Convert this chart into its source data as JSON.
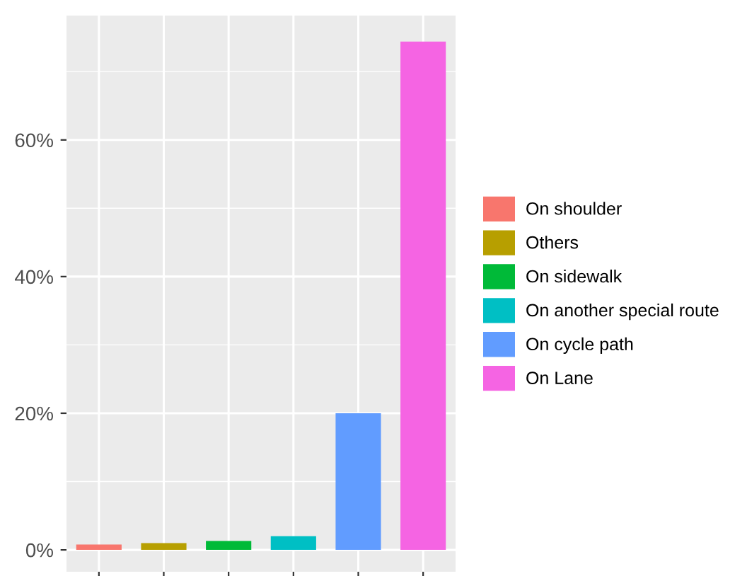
{
  "chart_data": {
    "type": "bar",
    "categories": [
      null,
      null,
      null,
      null,
      null,
      null
    ],
    "series": [
      {
        "name": "On shoulder",
        "color": "#f8766d",
        "values": [
          0.8,
          null,
          null,
          null,
          null,
          null
        ]
      },
      {
        "name": "Others",
        "color": "#b79f00",
        "values": [
          null,
          1.0,
          null,
          null,
          null,
          null
        ]
      },
      {
        "name": "On sidewalk",
        "color": "#00ba38",
        "values": [
          null,
          null,
          1.3,
          null,
          null,
          null
        ]
      },
      {
        "name": "On another special route",
        "color": "#00bfc4",
        "values": [
          null,
          null,
          null,
          2.0,
          null,
          null
        ]
      },
      {
        "name": "On cycle path",
        "color": "#619cff",
        "values": [
          null,
          null,
          null,
          null,
          20,
          null
        ]
      },
      {
        "name": "On Lane",
        "color": "#f564e3",
        "values": [
          null,
          null,
          null,
          null,
          null,
          74.4
        ]
      }
    ],
    "ylim": [
      -3.2,
      78.2
    ],
    "yticks": [
      {
        "value": 0,
        "label": "0%"
      },
      {
        "value": 20,
        "label": "20%"
      },
      {
        "value": 40,
        "label": "40%"
      },
      {
        "value": 60,
        "label": "60%"
      }
    ],
    "grid": true,
    "legend": "right",
    "tick_labels": "y"
  }
}
